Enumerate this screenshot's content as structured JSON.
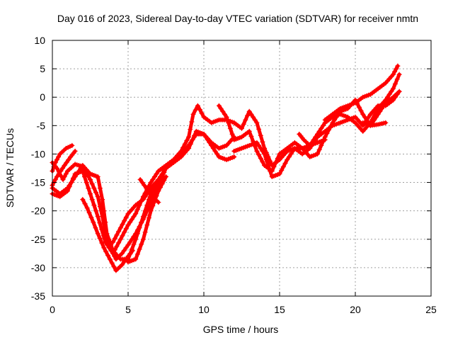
{
  "chart_data": {
    "type": "scatter",
    "title": "Day 016 of 2023, Sidereal Day-to-day VTEC variation (SDTVAR) for receiver nmtn",
    "xlabel": "GPS time / hours",
    "ylabel": "SDTVAR / TECUs",
    "xlim": [
      0,
      25
    ],
    "ylim": [
      -35,
      10
    ],
    "xticks": [
      0,
      5,
      10,
      15,
      20,
      25
    ],
    "yticks": [
      -35,
      -30,
      -25,
      -20,
      -15,
      -10,
      -5,
      0,
      5,
      10
    ],
    "grid": true,
    "legend": "none",
    "marker": "plus",
    "color": "#ff0000",
    "series": [
      {
        "x": [
          0.0,
          0.3,
          0.7,
          1.0,
          1.5,
          2.0,
          2.5,
          3.0,
          3.3,
          3.6,
          3.9,
          4.2,
          4.6,
          5.0,
          5.5,
          6.0,
          6.5,
          7.0,
          7.5,
          8.0,
          8.5,
          9.0,
          9.3,
          9.6,
          10.0,
          10.5,
          11.0,
          11.5,
          12.0
        ],
        "y": [
          -11.5,
          -12.5,
          -14.5,
          -13.0,
          -11.8,
          -12.2,
          -14.5,
          -17.5,
          -21.0,
          -25.0,
          -27.0,
          -28.5,
          -27.5,
          -26.0,
          -24.0,
          -21.5,
          -18.5,
          -15.5,
          -12.5,
          -11.0,
          -9.5,
          -7.0,
          -3.0,
          -1.5,
          -3.5,
          -4.5,
          -4.0,
          -4.0,
          -4.5
        ]
      },
      {
        "x": [
          0.0,
          0.5,
          1.0,
          1.5,
          2.0,
          2.5,
          3.0,
          3.3,
          3.6,
          4.0,
          4.5,
          5.0,
          5.5,
          6.0,
          6.5,
          7.0,
          7.5,
          8.0,
          8.5,
          9.0,
          9.5,
          10.0,
          10.5,
          11.0,
          11.5,
          12.0
        ],
        "y": [
          -16.0,
          -17.0,
          -16.0,
          -14.0,
          -12.0,
          -13.5,
          -14.0,
          -18.0,
          -24.0,
          -27.0,
          -28.5,
          -28.5,
          -25.0,
          -21.0,
          -17.0,
          -14.5,
          -12.5,
          -11.5,
          -10.5,
          -9.0,
          -6.0,
          -6.5,
          -8.0,
          -9.0,
          -8.5,
          -7.0
        ]
      },
      {
        "x": [
          0.0,
          0.5,
          1.0,
          1.5,
          2.0,
          2.5,
          3.0,
          3.5,
          4.0,
          4.5,
          5.0,
          5.5,
          6.0,
          6.5,
          7.0,
          7.5,
          8.0,
          8.5,
          9.0,
          9.5,
          10.0,
          10.5,
          11.0,
          11.5,
          12.0
        ],
        "y": [
          -17.0,
          -17.5,
          -16.5,
          -13.5,
          -13.0,
          -17.0,
          -21.0,
          -25.5,
          -27.5,
          -25.0,
          -22.5,
          -20.5,
          -17.5,
          -15.0,
          -13.0,
          -12.0,
          -11.0,
          -10.0,
          -8.5,
          -6.5,
          -6.5,
          -8.5,
          -10.5,
          -11.0,
          -10.5
        ]
      },
      {
        "x": [
          0.0,
          0.2,
          0.5,
          0.9,
          1.3
        ],
        "y": [
          -13.0,
          -11.5,
          -10.0,
          -9.0,
          -8.5
        ]
      },
      {
        "x": [
          0.0,
          0.3,
          0.8,
          1.2,
          1.5
        ],
        "y": [
          -15.5,
          -14.0,
          -12.0,
          -10.5,
          -9.5
        ]
      },
      {
        "x": [
          2.0,
          2.3,
          2.7,
          3.0,
          3.4,
          3.8,
          4.2,
          4.6,
          5.0,
          5.3
        ],
        "y": [
          -18.0,
          -19.5,
          -22.0,
          -24.0,
          -26.5,
          -28.5,
          -30.5,
          -29.5,
          -28.0,
          -27.0
        ]
      },
      {
        "x": [
          5.0,
          5.5,
          6.0,
          6.5,
          7.0,
          7.5
        ],
        "y": [
          -29.0,
          -28.5,
          -25.0,
          -20.0,
          -16.5,
          -14.0
        ]
      },
      {
        "x": [
          3.7,
          4.0,
          4.5,
          5.0,
          5.5,
          6.0,
          6.5,
          7.0
        ],
        "y": [
          -26.0,
          -25.5,
          -23.0,
          -20.5,
          -19.0,
          -18.0,
          -16.0,
          -14.5
        ]
      },
      {
        "x": [
          5.8,
          6.2,
          6.6,
          7.0
        ],
        "y": [
          -14.5,
          -16.0,
          -17.5,
          -18.5
        ]
      },
      {
        "x": [
          12.0,
          12.5,
          13.0,
          13.5,
          14.0,
          14.5,
          15.0,
          15.5,
          16.0,
          16.5,
          17.0,
          17.5,
          18.0,
          18.5,
          19.0,
          19.5,
          20.0,
          20.5,
          21.0,
          21.5,
          22.0,
          22.5,
          22.9
        ],
        "y": [
          -4.5,
          -5.5,
          -2.5,
          -4.5,
          -9.0,
          -12.0,
          -11.0,
          -9.5,
          -9.0,
          -10.0,
          -9.0,
          -7.0,
          -6.0,
          -5.0,
          -4.5,
          -4.0,
          -3.5,
          -5.0,
          -3.0,
          -1.5,
          -1.5,
          -0.5,
          1.0
        ]
      },
      {
        "x": [
          11.0,
          11.5,
          12.0,
          12.5,
          13.0,
          13.5,
          14.0,
          14.5,
          15.0,
          15.5,
          16.0,
          16.5,
          17.0,
          17.5,
          18.0,
          18.5,
          19.0,
          19.5,
          20.0,
          20.5,
          21.0,
          21.5,
          22.0,
          22.5,
          22.9
        ],
        "y": [
          -1.5,
          -3.5,
          -7.5,
          -7.0,
          -6.0,
          -9.5,
          -12.0,
          -13.0,
          -10.0,
          -9.0,
          -8.0,
          -9.0,
          -8.5,
          -6.5,
          -4.5,
          -3.5,
          -3.0,
          -3.5,
          -4.5,
          -6.0,
          -4.5,
          -2.0,
          -0.5,
          1.5,
          4.0
        ]
      },
      {
        "x": [
          12.0,
          12.5,
          13.0,
          13.5,
          14.0,
          14.5,
          15.0,
          15.5,
          16.0,
          16.5,
          17.0,
          17.5,
          18.0,
          18.5,
          19.0,
          19.5,
          20.0,
          20.5,
          21.0,
          21.5,
          22.0,
          22.5,
          22.9
        ],
        "y": [
          -9.5,
          -9.0,
          -8.5,
          -8.0,
          -10.0,
          -14.0,
          -13.5,
          -11.0,
          -9.0,
          -9.0,
          -10.5,
          -10.0,
          -7.0,
          -4.5,
          -2.5,
          -2.0,
          -0.5,
          -3.0,
          -5.0,
          -3.0,
          -1.0,
          0.0,
          1.0
        ]
      },
      {
        "x": [
          16.3,
          16.6,
          17.0,
          17.5,
          18.0
        ],
        "y": [
          -6.5,
          -7.5,
          -8.5,
          -8.0,
          -7.5
        ]
      },
      {
        "x": [
          18.0,
          18.5,
          19.0,
          19.5,
          20.0,
          20.5,
          21.0,
          21.5,
          22.0,
          22.5,
          22.8
        ],
        "y": [
          -4.0,
          -3.0,
          -2.0,
          -1.5,
          -1.0,
          0.0,
          0.5,
          1.5,
          2.5,
          4.0,
          5.5
        ]
      },
      {
        "x": [
          20.5,
          21.0,
          21.5,
          22.0
        ],
        "y": [
          -4.5,
          -5.0,
          -4.8,
          -4.5
        ]
      }
    ]
  }
}
